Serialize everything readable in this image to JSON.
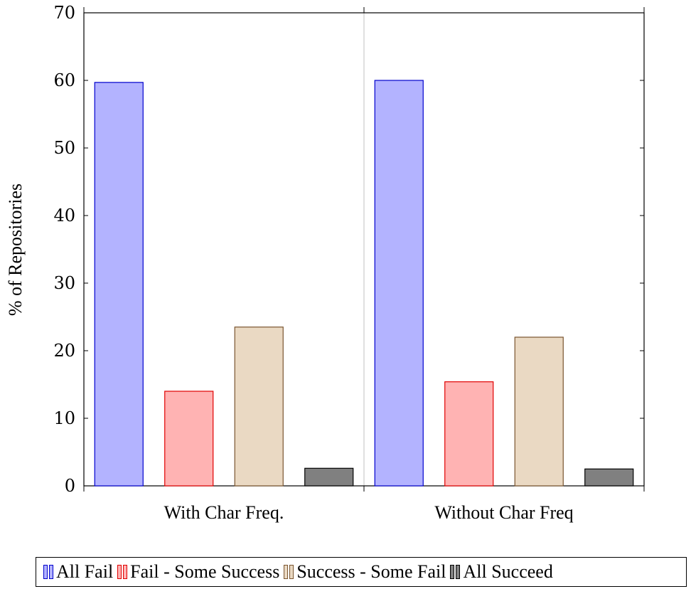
{
  "chart_data": {
    "type": "bar",
    "categories": [
      "With Char Freq.",
      "Without Char Freq"
    ],
    "series": [
      {
        "name": "All Fail",
        "values": [
          59.7,
          60.0
        ],
        "fill": "#b3b3ff",
        "stroke": "#0000cc"
      },
      {
        "name": "Fail - Some Success",
        "values": [
          14.0,
          15.4
        ],
        "fill": "#ffb3b3",
        "stroke": "#e00000"
      },
      {
        "name": "Success - Some Fail",
        "values": [
          23.5,
          22.0
        ],
        "fill": "#ead9c3",
        "stroke": "#7a5530"
      },
      {
        "name": "All Succeed",
        "values": [
          2.6,
          2.5
        ],
        "fill": "#808080",
        "stroke": "#000000"
      }
    ],
    "xlabel": "",
    "ylabel": "% of Repositories",
    "ylim": [
      0,
      70
    ],
    "yticks": [
      0,
      10,
      20,
      30,
      40,
      50,
      60,
      70
    ],
    "legend_position": "bottom",
    "grid": false
  }
}
